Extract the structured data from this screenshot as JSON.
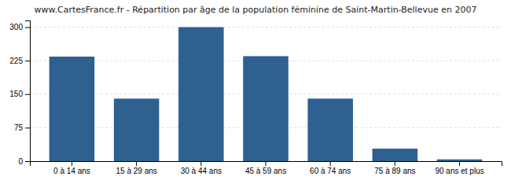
{
  "chart_data": {
    "type": "bar",
    "title": "www.CartesFrance.fr - Répartition par âge de la population féminine de Saint-Martin-Bellevue en 2007",
    "categories": [
      "0 à 14 ans",
      "15 à 29 ans",
      "30 à 44 ans",
      "45 à 59 ans",
      "60 à 74 ans",
      "75 à 89 ans",
      "90 ans et plus"
    ],
    "values": [
      234,
      140,
      300,
      235,
      140,
      28,
      4
    ],
    "color": "#2e6090",
    "ylim": [
      0,
      315
    ],
    "yticks": [
      0,
      75,
      150,
      225,
      300
    ],
    "grid": true
  }
}
